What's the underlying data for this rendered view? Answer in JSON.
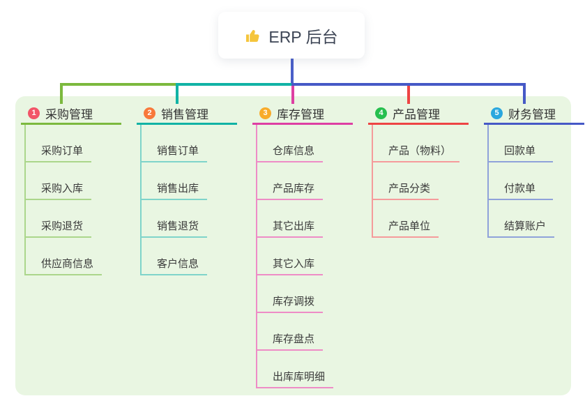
{
  "root": {
    "icon": "thumbs-up-icon",
    "label": "ERP 后台"
  },
  "style": {
    "panel_bg": "#e9f6e2",
    "root_connector_color": "#4a5fc9",
    "text_color": "#333333"
  },
  "branches": [
    {
      "index": "1",
      "label": "采购管理",
      "badge_color": "#f25568",
      "line_color": "#7cb93e",
      "child_line_color": "#abd68b",
      "children": [
        "采购订单",
        "采购入库",
        "采购退货",
        "供应商信息"
      ]
    },
    {
      "index": "2",
      "label": "销售管理",
      "badge_color": "#f8793b",
      "line_color": "#11b3a5",
      "child_line_color": "#7fd4ca",
      "children": [
        "销售订单",
        "销售出库",
        "销售退货",
        "客户信息"
      ]
    },
    {
      "index": "3",
      "label": "库存管理",
      "badge_color": "#f8ab2a",
      "line_color": "#de3fa3",
      "child_line_color": "#ee8cc6",
      "children": [
        "仓库信息",
        "产品库存",
        "其它出库",
        "其它入库",
        "库存调拨",
        "库存盘点",
        "出库库明细"
      ]
    },
    {
      "index": "4",
      "label": "产品管理",
      "badge_color": "#26bf4e",
      "line_color": "#ee4444",
      "child_line_color": "#f59b9b",
      "children": [
        "产品（物料）",
        "产品分类",
        "产品单位"
      ]
    },
    {
      "index": "5",
      "label": "财务管理",
      "badge_color": "#2aa7de",
      "line_color": "#4659c6",
      "child_line_color": "#8fa2da",
      "children": [
        "回款单",
        "付款单",
        "结算账户"
      ]
    }
  ]
}
